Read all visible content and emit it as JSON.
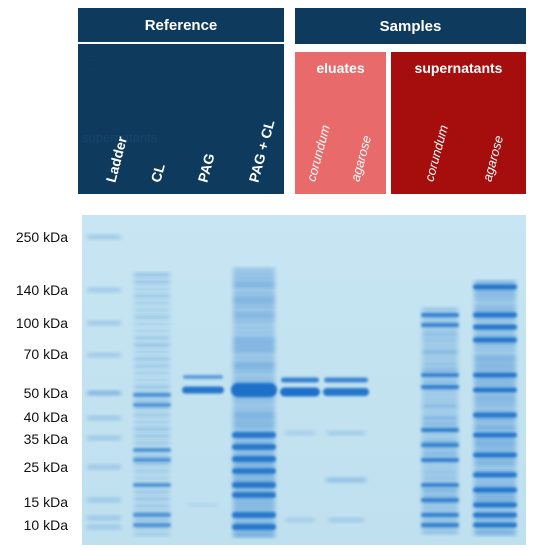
{
  "reference": {
    "title": "Reference",
    "lanes": [
      "Ladder",
      "CL",
      "PAG",
      "PAG + CL"
    ],
    "ghost_lines": [
      "…",
      "…",
      "supernatants"
    ]
  },
  "samples": {
    "title": "Samples",
    "eluates": {
      "title": "eluates",
      "lanes": [
        "corundum",
        "agarose"
      ]
    },
    "supernatants": {
      "title": "supernatants",
      "lanes": [
        "corundum",
        "agarose"
      ]
    }
  },
  "markers": [
    "250 kDa",
    "140 kDa",
    "100 kDa",
    "70 kDa",
    "50 kDa",
    "40 kDa",
    "35 kDa",
    "25 kDa",
    "15 kDa",
    "10 kDa"
  ],
  "colors": {
    "reference_panel": "#0e3a5d",
    "eluates_panel": "#e96a6a",
    "supernatants_panel": "#a60d0d",
    "gel_background": "#c4e3f1",
    "band": "#1a6fc9"
  }
}
